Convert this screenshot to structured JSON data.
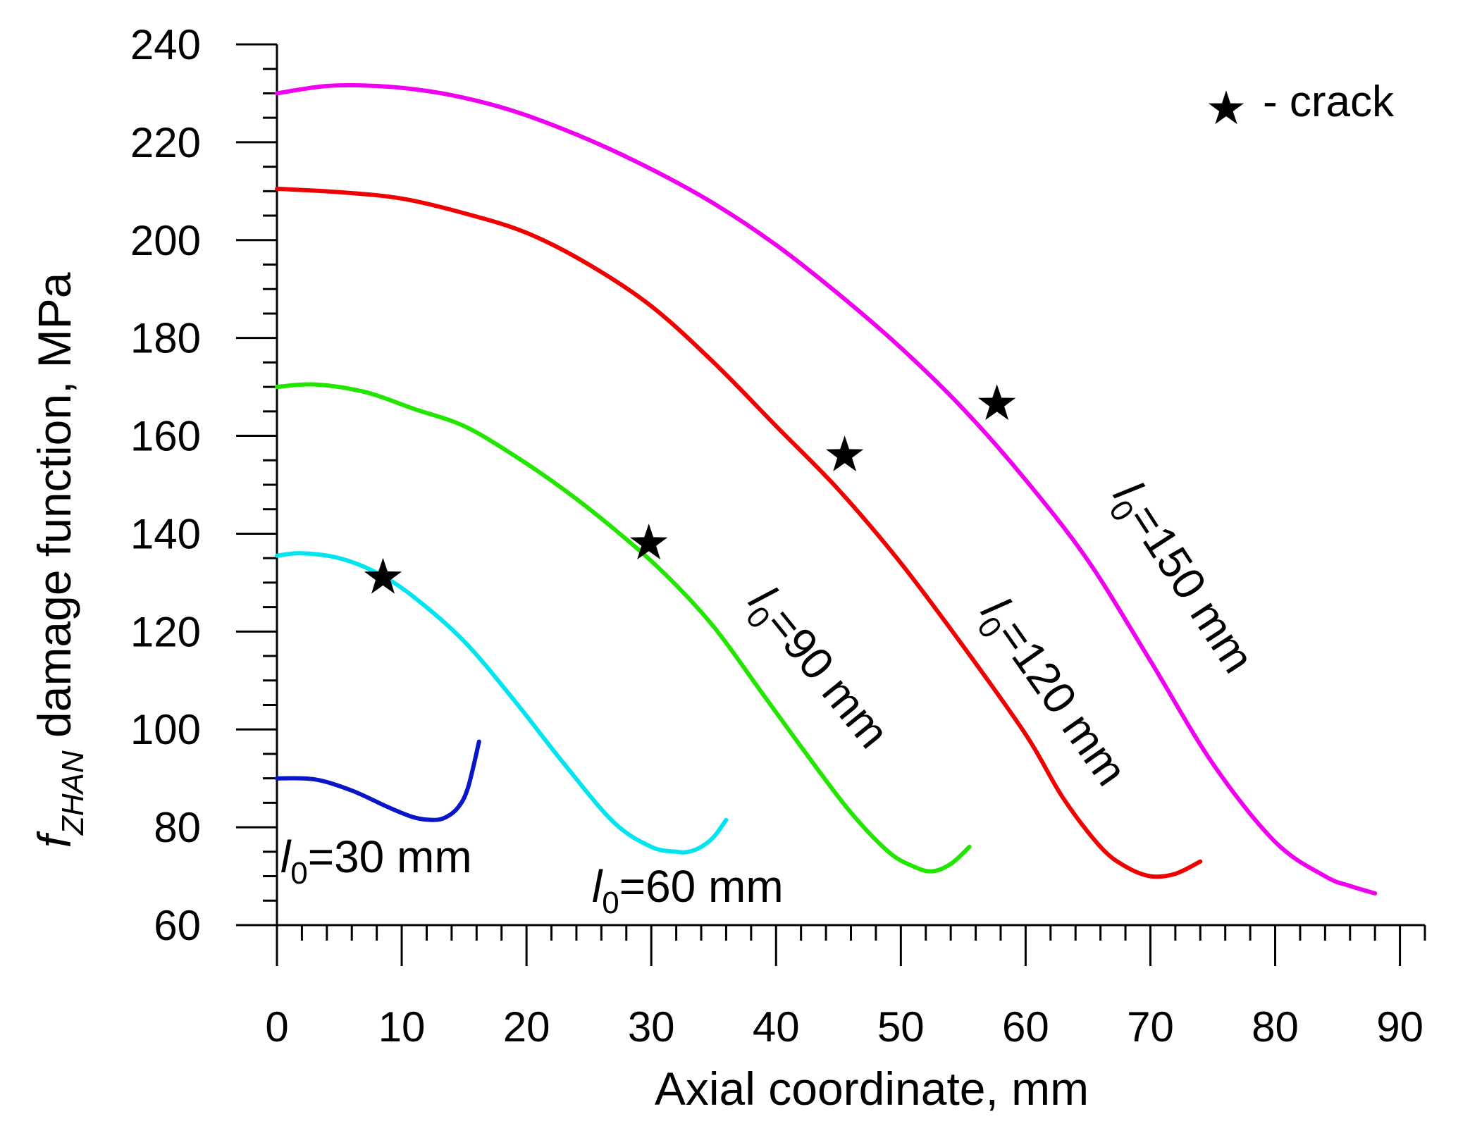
{
  "chart_data": {
    "type": "line",
    "title": "",
    "xlabel": "Axial coordinate, mm",
    "ylabel_symbol": "f",
    "ylabel_subscript": "ZHAN",
    "ylabel_rest": " damage function, MPa",
    "xlim": [
      0,
      92
    ],
    "ylim": [
      60,
      240
    ],
    "xticks": [
      0,
      10,
      20,
      30,
      40,
      50,
      60,
      70,
      80,
      90
    ],
    "yticks": [
      60,
      80,
      100,
      120,
      140,
      160,
      180,
      200,
      220,
      240
    ],
    "grid": false,
    "legend": {
      "marker": "★",
      "text": "- crack",
      "position": "top-right"
    },
    "series": [
      {
        "name": "l0=30 mm",
        "label_main": "l",
        "label_sub": "0",
        "label_rest": "=30 mm",
        "color": "#0a14c8",
        "x": [
          0,
          3,
          6,
          9,
          11,
          12.5,
          13.5,
          14.5,
          15.3,
          16.2
        ],
        "y": [
          90,
          89.8,
          87.5,
          84,
          82,
          81.5,
          82,
          84,
          88,
          97.5
        ]
      },
      {
        "name": "l0=60 mm",
        "label_main": "l",
        "label_sub": "0",
        "label_rest": "=60 mm",
        "color": "#00e5f0",
        "x": [
          0,
          2,
          5,
          8,
          11,
          15,
          19,
          23,
          27,
          30,
          32,
          33,
          34,
          35,
          36
        ],
        "y": [
          135.5,
          136,
          135,
          132,
          127,
          118,
          106,
          93,
          81,
          76,
          75,
          75,
          76,
          78,
          81.5
        ]
      },
      {
        "name": "l0=90 mm",
        "label_main": "l",
        "label_sub": "0",
        "label_rest": "=90 mm",
        "color": "#22e600",
        "x": [
          0,
          3,
          7,
          11,
          15,
          19,
          23,
          27,
          31,
          35,
          39,
          43,
          46,
          49,
          51,
          52.5,
          54,
          55.5
        ],
        "y": [
          170,
          170.5,
          169,
          165.5,
          162,
          156,
          149,
          141,
          132,
          121,
          107,
          93,
          83,
          75,
          72,
          71,
          72.5,
          76
        ]
      },
      {
        "name": "l0=120 mm",
        "label_main": "l",
        "label_sub": "0",
        "label_rest": "=120 mm",
        "color": "#f00000",
        "x": [
          0,
          5,
          10,
          15,
          20,
          25,
          30,
          35,
          40,
          45,
          50,
          55,
          60,
          63,
          66,
          68,
          70,
          72,
          74
        ],
        "y": [
          210.5,
          209.8,
          208.5,
          205.5,
          201.5,
          195,
          186.5,
          175,
          162,
          149,
          134,
          117,
          99,
          86,
          76,
          72,
          70,
          70.5,
          73
        ]
      },
      {
        "name": "l0=150 mm",
        "label_main": "l",
        "label_sub": "0",
        "label_rest": "=150 mm",
        "color": "#f000f0",
        "x": [
          0,
          4,
          8,
          12,
          16,
          20,
          25,
          30,
          35,
          40,
          45,
          50,
          55,
          60,
          65,
          70,
          75,
          80,
          84,
          86,
          88
        ],
        "y": [
          230,
          231.5,
          231.5,
          230.5,
          228.5,
          225.5,
          220.5,
          214.5,
          207.5,
          199,
          189,
          178,
          165.5,
          151,
          134.5,
          114,
          93,
          77,
          70,
          68,
          66.5
        ]
      }
    ],
    "crack_points": [
      {
        "series": "l0=60 mm",
        "x": 8.5,
        "y": 131
      },
      {
        "series": "l0=90 mm",
        "x": 29.8,
        "y": 138
      },
      {
        "series": "l0=120 mm",
        "x": 45.5,
        "y": 156
      },
      {
        "series": "l0=150 mm",
        "x": 57.7,
        "y": 166.5
      }
    ]
  }
}
